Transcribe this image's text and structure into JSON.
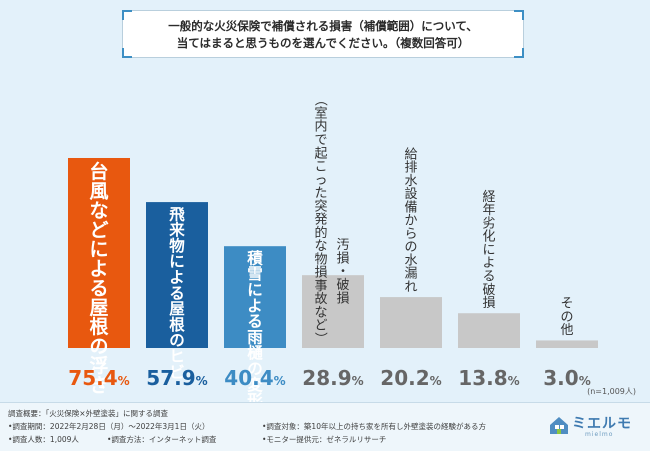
{
  "question": {
    "line1": "一般的な火災保険で補償される損害（補償範囲）について、",
    "line2": "当てはまると思うものを選んでください。（複数回答可）"
  },
  "chart_data": {
    "type": "bar",
    "title": "一般的な火災保険で補償される損害（補償範囲）について、当てはまると思うものを選んでください。（複数回答可）",
    "categories": [
      "台風などによる屋根の浮き",
      "飛来物による屋根のヒビ",
      "積雪による雨樋の変形",
      "（室内で起こった突発的な物損事故など） 汚損・破損",
      "給排水設備からの水漏れ",
      "経年劣化による破損",
      "その他"
    ],
    "values": [
      75.4,
      57.9,
      40.4,
      28.9,
      20.2,
      13.8,
      3.0
    ],
    "unit": "%",
    "ylim": [
      0,
      100
    ],
    "sample_note": "(n=1,009人)",
    "bar_colors": [
      "#e8580f",
      "#1a5f9e",
      "#3d8cc4",
      "#c8c8c8",
      "#c8c8c8",
      "#c8c8c8",
      "#c8c8c8"
    ],
    "label_colors": [
      "#ffffff",
      "#ffffff",
      "#ffffff",
      "#333333",
      "#333333",
      "#333333",
      "#333333"
    ],
    "value_colors": [
      "#e8580f",
      "#1a5f9e",
      "#3d8cc4",
      "#666666",
      "#666666",
      "#666666",
      "#666666"
    ],
    "grid": false,
    "legend": "none"
  },
  "footer": {
    "overview": "調査概要：「火災保険×外壁塗装」に関する調査",
    "period": "•調査期間：2022年2月28日（月）～2022年3月1日（火）",
    "target": "•調査対象：築10年以上の持ち家を所有し外壁塗装の経験がある方",
    "count": "•調査人数：1,009人",
    "method": "•調査方法：インターネット調査",
    "provider": "•モニター提供元：ゼネラルリサーチ",
    "logo": "ミエルモ",
    "logo_sub": "mielmo"
  },
  "colors": {
    "background": "#e3f1fa",
    "accent": "#3d8fc4"
  }
}
